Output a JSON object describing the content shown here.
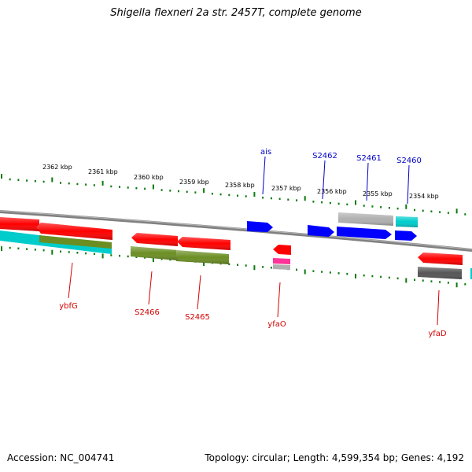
{
  "title": "Shigella flexneri 2a str. 2457T, complete genome",
  "footer": {
    "accession": "Accession: NC_004741",
    "stats": "Topology: circular; Length: 4,599,354 bp; Genes: 4,192"
  },
  "colors": {
    "backbone": "#808080",
    "ticks": "#0a7a0a",
    "forward_label": "#0000c8",
    "reverse_label": "#d40000",
    "red_feature": "#ff0000",
    "blue_feature": "#0000ff",
    "cyan_feature": "#00cccc",
    "olive_feature": "#6b8e23",
    "gray_feature": "#b0b0b0",
    "dark_gray_feature": "#555555",
    "pink_feature": "#ff3399"
  },
  "scale_labels": [
    "2362 kbp",
    "2361 kbp",
    "2360 kbp",
    "2359 kbp",
    "2358 kbp",
    "2357 kbp",
    "2356 kbp",
    "2355 kbp",
    "2354 kbp"
  ],
  "forward_genes": [
    "ais",
    "S2462",
    "S2461",
    "S2460"
  ],
  "reverse_genes": [
    "ybfG",
    "S2466",
    "S2465",
    "yfaO",
    "yfaD"
  ]
}
